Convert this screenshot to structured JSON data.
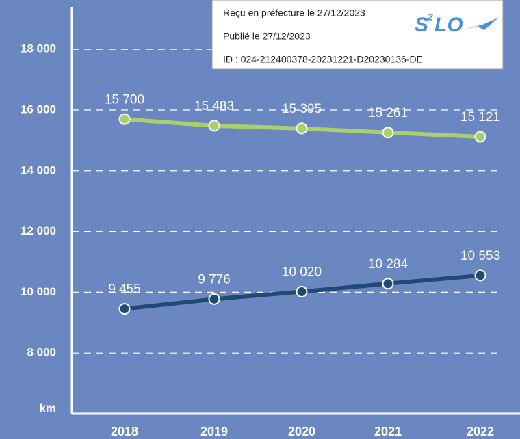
{
  "chart_data": {
    "type": "line",
    "categories": [
      "2018",
      "2019",
      "2020",
      "2021",
      "2022"
    ],
    "series": [
      {
        "color": "#a9d06b",
        "values": [
          15700,
          15483,
          15395,
          15261,
          15121
        ],
        "value_labels": [
          "15 700",
          "15 483",
          "15 395",
          "15 261",
          "15 121"
        ]
      },
      {
        "color": "#1f4a74",
        "values": [
          9455,
          9776,
          10020,
          10284,
          10553
        ],
        "value_labels": [
          "9 455",
          "9 776",
          "10 020",
          "10 284",
          "10 553"
        ]
      }
    ],
    "y_label": "km",
    "ylim": [
      6000,
      19400
    ],
    "yticks": [
      {
        "value": 8000,
        "label": "8 000"
      },
      {
        "value": 10000,
        "label": "10 000"
      },
      {
        "value": 12000,
        "label": "12 000"
      },
      {
        "value": 14000,
        "label": "14 000"
      },
      {
        "value": 16000,
        "label": "16 000"
      },
      {
        "value": 18000,
        "label": "18 000"
      }
    ],
    "grid": true
  },
  "stamp": {
    "lines": [
      "Reçu en préfecture le 27/12/2023",
      "Publié le 27/12/2023",
      "ID : 024-212400378-20231221-D20230136-DE"
    ],
    "logo": {
      "s": "S",
      "sup": "2",
      "lo": "LO"
    }
  }
}
